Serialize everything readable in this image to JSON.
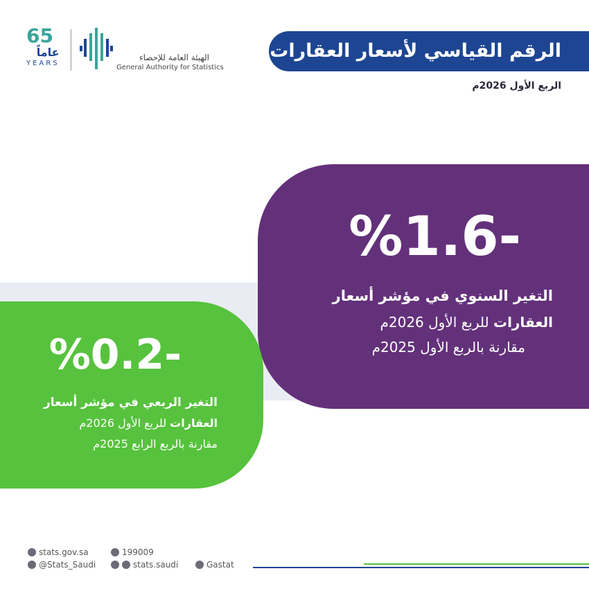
{
  "header": {
    "title": "الرقم القياسي لأسعار العقارات",
    "period": "الربع الأول 2026م"
  },
  "logo": {
    "anniversary_number": "65",
    "anniversary_ar": "عاماً",
    "anniversary_en": "YEARS",
    "org_ar": "الهيئة العامة للإحصاء",
    "org_en": "General Authority for Statistics"
  },
  "annual": {
    "value": "%1.6-",
    "line1": "التغير السنوي في مؤشر أسعار",
    "line2_bold": "العقارات",
    "line2_rest": " للربع الأول 2026م",
    "line3": "مقارنة بالربع الأول 2025م"
  },
  "quarterly": {
    "value": "%0.2-",
    "line1": "التغير الربعي في مؤشر أسعار",
    "line2_bold": "العقارات",
    "line2_rest": " للربع الأول 2026م",
    "line3": "مقارنة بالربع الرابع 2025م"
  },
  "footer": {
    "website": "stats.gov.sa",
    "phone": "199009",
    "x": "@Stats_Saudi",
    "social": "stats.saudi",
    "linkedin": "Gastat"
  }
}
